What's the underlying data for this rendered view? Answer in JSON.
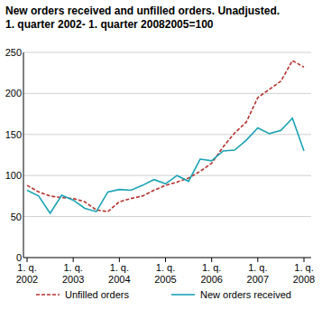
{
  "chart_data": {
    "type": "line",
    "title": "New orders received and unfilled orders. Unadjusted.",
    "subtitle": "1. quarter 2002- 1. quarter 20082005=100",
    "categories": [
      "1. q. 2002",
      null,
      null,
      null,
      "1. q. 2003",
      null,
      null,
      null,
      "1. q. 2004",
      null,
      null,
      null,
      "1. q. 2005",
      null,
      null,
      null,
      "1. q. 2006",
      null,
      null,
      null,
      "1. q. 2007",
      null,
      null,
      null,
      "1. q. 2008"
    ],
    "series": [
      {
        "name": "Unfilled orders",
        "color": "#b5322e",
        "line_style": "dashed",
        "values": [
          88,
          80,
          75,
          73,
          72,
          68,
          58,
          56,
          68,
          72,
          75,
          82,
          88,
          92,
          97,
          105,
          115,
          135,
          152,
          165,
          195,
          205,
          215,
          240,
          232
        ]
      },
      {
        "name": "New orders received",
        "color": "#1aa3b4",
        "line_style": "solid",
        "values": [
          82,
          75,
          54,
          76,
          70,
          60,
          56,
          80,
          83,
          82,
          88,
          95,
          90,
          100,
          93,
          120,
          118,
          130,
          131,
          143,
          158,
          151,
          155,
          170,
          130
        ]
      }
    ],
    "ylim": [
      0,
      250
    ],
    "yticks": [
      0,
      50,
      100,
      150,
      200,
      250
    ],
    "grid": true,
    "legend": "bottom"
  }
}
